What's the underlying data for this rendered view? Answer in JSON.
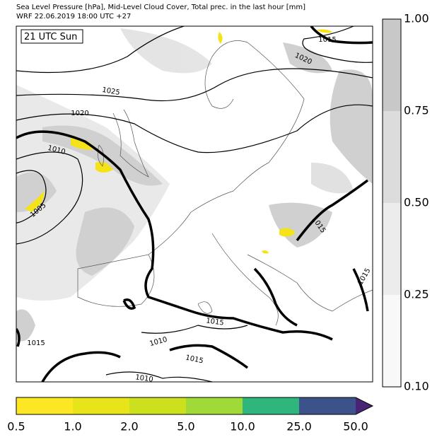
{
  "header": {
    "lines": [
      "Sea Level Pressure [hPa], Mid-Level Cloud Cover, Total prec. in the last hour [mm]",
      "WRF 22.06.2019 18:00 UTC +27"
    ]
  },
  "map": {
    "time_label": "21 UTC Sun",
    "contour_labels": [
      "1015",
      "1020",
      "1025",
      "1020",
      "1010",
      "1005",
      "1015",
      "1015",
      "1010",
      "1015",
      "1010",
      "1015",
      "1015"
    ]
  },
  "cloud_colorbar": {
    "ticks": [
      "1.00",
      "0.75",
      "0.50",
      "0.25",
      "0.10"
    ]
  },
  "precip_colorbar": {
    "ticks": [
      "0.5",
      "1.0",
      "2.0",
      "5.0",
      "10.0",
      "25.0",
      "50.0"
    ]
  }
}
